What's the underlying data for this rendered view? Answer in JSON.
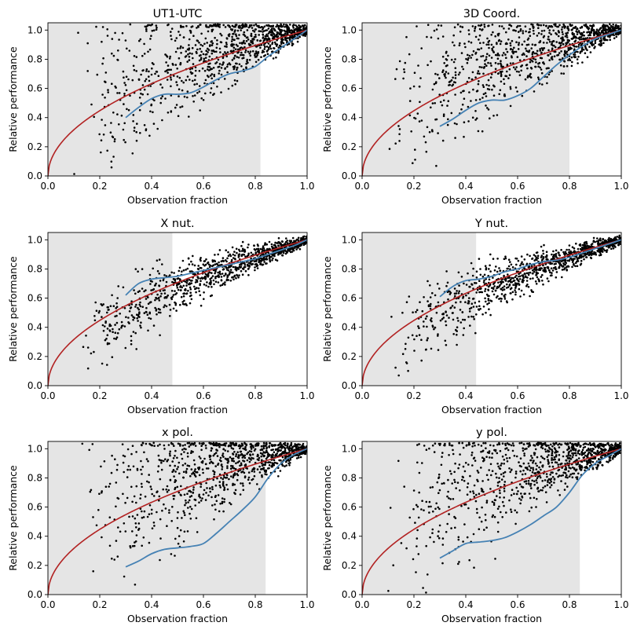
{
  "colors": {
    "points": "#000000",
    "shade": "#e5e5e5",
    "red_curve": "#b22222",
    "blue_curve": "#4682b4",
    "axes": "#000000"
  },
  "chart_data": [
    {
      "type": "scatter",
      "title": "UT1-UTC",
      "xlabel": "Observation fraction",
      "ylabel": "Relative performance",
      "xlim": [
        0,
        1.0
      ],
      "ylim": [
        0,
        1.05
      ],
      "xticks": [
        "0.0",
        "0.2",
        "0.4",
        "0.6",
        "0.8",
        "1.0"
      ],
      "yticks": [
        "0.0",
        "0.2",
        "0.4",
        "0.6",
        "0.8",
        "1.0"
      ],
      "shade_until": 0.82,
      "red_curve": "y = sqrt(x)",
      "blue_curve": {
        "x": [
          0.3,
          0.35,
          0.4,
          0.45,
          0.5,
          0.55,
          0.6,
          0.65,
          0.7,
          0.75,
          0.8,
          0.85,
          0.9,
          0.95,
          1.0
        ],
        "y": [
          0.4,
          0.47,
          0.53,
          0.56,
          0.56,
          0.57,
          0.61,
          0.66,
          0.7,
          0.72,
          0.75,
          0.82,
          0.88,
          0.94,
          1.0
        ]
      },
      "scatter_model": {
        "n": 1000,
        "bias": 0.08,
        "spread": 0.5,
        "seed": 11
      }
    },
    {
      "type": "scatter",
      "title": "3D Coord.",
      "xlabel": "Observation fraction",
      "ylabel": "Relative performance",
      "xlim": [
        0,
        1.0
      ],
      "ylim": [
        0,
        1.05
      ],
      "xticks": [
        "0.0",
        "0.2",
        "0.4",
        "0.6",
        "0.8",
        "1.0"
      ],
      "yticks": [
        "0.0",
        "0.2",
        "0.4",
        "0.6",
        "0.8",
        "1.0"
      ],
      "shade_until": 0.8,
      "red_curve": "y = sqrt(x)",
      "blue_curve": {
        "x": [
          0.3,
          0.35,
          0.4,
          0.45,
          0.5,
          0.55,
          0.6,
          0.65,
          0.7,
          0.75,
          0.8,
          0.85,
          0.9,
          0.95,
          1.0
        ],
        "y": [
          0.34,
          0.39,
          0.45,
          0.5,
          0.52,
          0.52,
          0.55,
          0.6,
          0.68,
          0.76,
          0.83,
          0.89,
          0.94,
          0.97,
          1.0
        ]
      },
      "scatter_model": {
        "n": 1000,
        "bias": 0.1,
        "spread": 0.45,
        "seed": 23
      }
    },
    {
      "type": "scatter",
      "title": "X nut.",
      "xlabel": "Observation fraction",
      "ylabel": "Relative performance",
      "xlim": [
        0,
        1.0
      ],
      "ylim": [
        0,
        1.05
      ],
      "xticks": [
        "0.0",
        "0.2",
        "0.4",
        "0.6",
        "0.8",
        "1.0"
      ],
      "yticks": [
        "0.0",
        "0.2",
        "0.4",
        "0.6",
        "0.8",
        "1.0"
      ],
      "shade_until": 0.48,
      "red_curve": "y = sqrt(x)",
      "blue_curve": {
        "x": [
          0.3,
          0.35,
          0.4,
          0.45,
          0.5,
          0.55,
          0.6,
          0.65,
          0.7,
          0.75,
          0.8,
          0.85,
          0.9,
          0.95,
          1.0
        ],
        "y": [
          0.62,
          0.7,
          0.73,
          0.74,
          0.75,
          0.77,
          0.79,
          0.81,
          0.83,
          0.85,
          0.87,
          0.9,
          0.93,
          0.96,
          1.0
        ]
      },
      "scatter_model": {
        "n": 1000,
        "bias": -0.05,
        "spread": 0.2,
        "seed": 37
      }
    },
    {
      "type": "scatter",
      "title": "Y nut.",
      "xlabel": "Observation fraction",
      "ylabel": "Relative performance",
      "xlim": [
        0,
        1.0
      ],
      "ylim": [
        0,
        1.05
      ],
      "xticks": [
        "0.0",
        "0.2",
        "0.4",
        "0.6",
        "0.8",
        "1.0"
      ],
      "yticks": [
        "0.0",
        "0.2",
        "0.4",
        "0.6",
        "0.8",
        "1.0"
      ],
      "shade_until": 0.44,
      "red_curve": "y = sqrt(x)",
      "blue_curve": {
        "x": [
          0.3,
          0.35,
          0.4,
          0.45,
          0.5,
          0.55,
          0.6,
          0.65,
          0.7,
          0.75,
          0.8,
          0.85,
          0.9,
          0.95,
          1.0
        ],
        "y": [
          0.61,
          0.68,
          0.72,
          0.73,
          0.75,
          0.78,
          0.8,
          0.83,
          0.85,
          0.86,
          0.88,
          0.91,
          0.94,
          0.97,
          1.0
        ]
      },
      "scatter_model": {
        "n": 1000,
        "bias": -0.05,
        "spread": 0.2,
        "seed": 41
      }
    },
    {
      "type": "scatter",
      "title": "x pol.",
      "xlabel": "Observation fraction",
      "ylabel": "Relative performance",
      "xlim": [
        0,
        1.0
      ],
      "ylim": [
        0,
        1.05
      ],
      "xticks": [
        "0.0",
        "0.2",
        "0.4",
        "0.6",
        "0.8",
        "1.0"
      ],
      "yticks": [
        "0.0",
        "0.2",
        "0.4",
        "0.6",
        "0.8",
        "1.0"
      ],
      "shade_until": 0.84,
      "red_curve": "y = sqrt(x)",
      "blue_curve": {
        "x": [
          0.3,
          0.35,
          0.4,
          0.45,
          0.5,
          0.55,
          0.6,
          0.65,
          0.7,
          0.75,
          0.8,
          0.85,
          0.9,
          0.95,
          1.0
        ],
        "y": [
          0.19,
          0.23,
          0.28,
          0.31,
          0.32,
          0.33,
          0.35,
          0.42,
          0.5,
          0.58,
          0.67,
          0.8,
          0.9,
          0.96,
          1.0
        ]
      },
      "scatter_model": {
        "n": 1000,
        "bias": 0.15,
        "spread": 0.55,
        "seed": 53
      }
    },
    {
      "type": "scatter",
      "title": "y pol.",
      "xlabel": "Observation fraction",
      "ylabel": "Relative performance",
      "xlim": [
        0,
        1.0
      ],
      "ylim": [
        0,
        1.05
      ],
      "xticks": [
        "0.0",
        "0.2",
        "0.4",
        "0.6",
        "0.8",
        "1.0"
      ],
      "yticks": [
        "0.0",
        "0.2",
        "0.4",
        "0.6",
        "0.8",
        "1.0"
      ],
      "shade_until": 0.84,
      "red_curve": "y = sqrt(x)",
      "blue_curve": {
        "x": [
          0.3,
          0.35,
          0.4,
          0.45,
          0.5,
          0.55,
          0.6,
          0.65,
          0.7,
          0.75,
          0.8,
          0.85,
          0.9,
          0.95,
          1.0
        ],
        "y": [
          0.25,
          0.3,
          0.35,
          0.36,
          0.37,
          0.39,
          0.43,
          0.48,
          0.54,
          0.6,
          0.7,
          0.82,
          0.9,
          0.95,
          1.0
        ]
      },
      "scatter_model": {
        "n": 1000,
        "bias": 0.15,
        "spread": 0.55,
        "seed": 67
      }
    }
  ]
}
